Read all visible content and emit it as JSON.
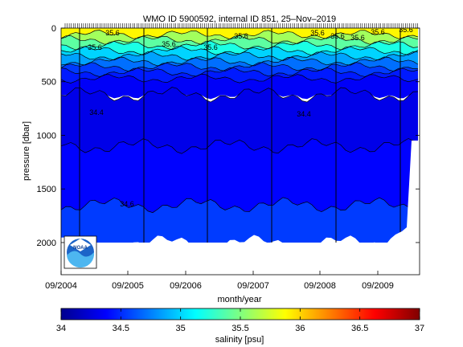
{
  "chart_data": {
    "type": "heatmap",
    "title": "WMO ID 5900592, internal ID 851, 25–Nov–2019",
    "xlabel": "month/year",
    "ylabel": "pressure [dbar]",
    "x_ticks": [
      "09/2004",
      "09/2005",
      "09/2006",
      "09/2007",
      "09/2008",
      "09/2009"
    ],
    "y_ticks": [
      "0",
      "500",
      "1000",
      "1500",
      "2000"
    ],
    "ylim": [
      2300,
      0
    ],
    "colorbar": {
      "label": "salinity [psu]",
      "ticks": [
        "34",
        "34.5",
        "35",
        "35.5",
        "36",
        "36.5",
        "37"
      ],
      "range": [
        34,
        37
      ],
      "colormap": "jet"
    },
    "contour_labels": [
      "35.6",
      "35.6",
      "35.6",
      "35.6",
      "35.6",
      "35.6",
      "35.6",
      "35.6",
      "35.6",
      "35.6",
      "34.4",
      "34.4",
      "34.6"
    ],
    "layers": [
      {
        "salinity": 35.9,
        "top": 0,
        "bottom": 60
      },
      {
        "salinity": 35.6,
        "top": 60,
        "bottom": 110
      },
      {
        "salinity": 35.4,
        "top": 110,
        "bottom": 160
      },
      {
        "salinity": 35.2,
        "top": 160,
        "bottom": 210
      },
      {
        "salinity": 35.0,
        "top": 210,
        "bottom": 260
      },
      {
        "salinity": 34.85,
        "top": 260,
        "bottom": 310
      },
      {
        "salinity": 34.7,
        "top": 310,
        "bottom": 360
      },
      {
        "salinity": 34.55,
        "top": 360,
        "bottom": 410
      },
      {
        "salinity": 34.45,
        "top": 410,
        "bottom": 470
      },
      {
        "salinity": 34.35,
        "top": 470,
        "bottom": 620
      },
      {
        "salinity": 34.3,
        "top": 620,
        "bottom": 1100
      },
      {
        "salinity": 34.38,
        "top": 1100,
        "bottom": 1650
      },
      {
        "salinity": 34.55,
        "top": 1650,
        "bottom": 2000
      }
    ],
    "profile_lines": [
      "09/2004",
      "05/2005",
      "09/2006",
      "07/2007",
      "07/2008",
      "04/2009"
    ],
    "colors": {
      "background": "#ffffff",
      "axis": "#000000",
      "contour": "#000000"
    },
    "logo": {
      "name": "noaa-logo",
      "text": "NOAA"
    }
  }
}
